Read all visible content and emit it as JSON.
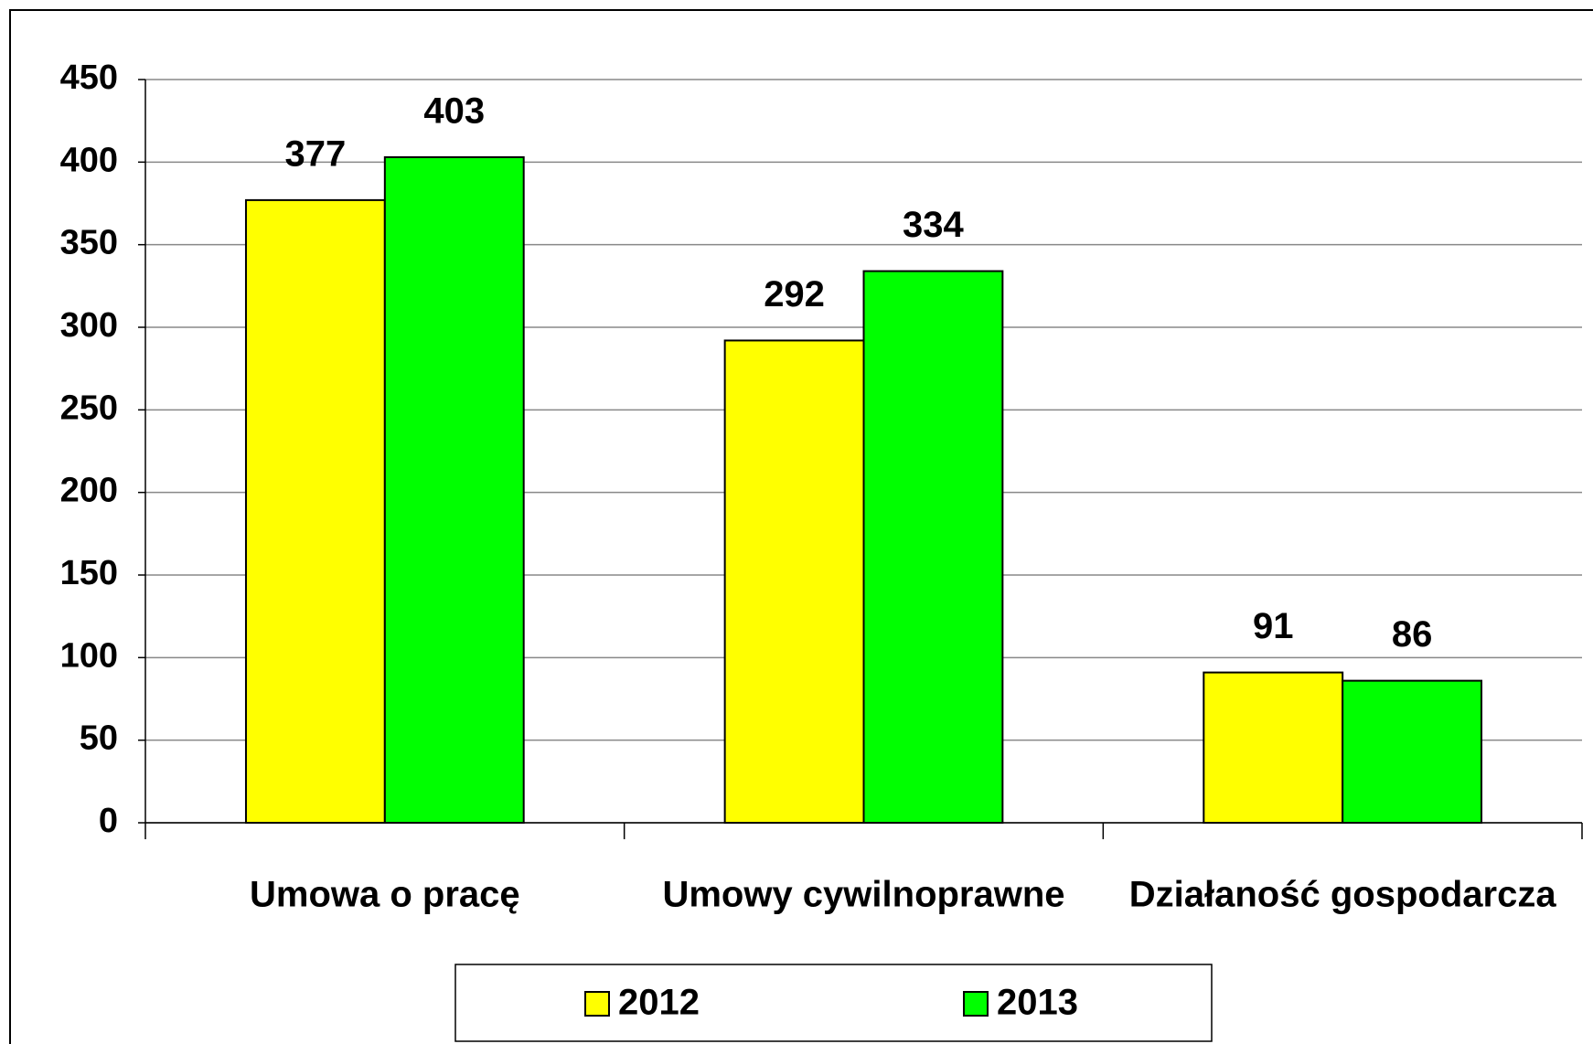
{
  "chart_data": {
    "type": "bar",
    "categories": [
      "Umowa o pracę",
      "Umowy cywilnoprawne",
      "Działaność gospodarcza"
    ],
    "series": [
      {
        "name": "2012",
        "color": "#ffff00",
        "values": [
          377,
          292,
          91
        ]
      },
      {
        "name": "2013",
        "color": "#00ff00",
        "values": [
          403,
          334,
          86
        ]
      }
    ],
    "ylim": [
      0,
      450
    ],
    "yticks": [
      0,
      50,
      100,
      150,
      200,
      250,
      300,
      350,
      400,
      450
    ],
    "grid": true,
    "legend": "bottom"
  }
}
